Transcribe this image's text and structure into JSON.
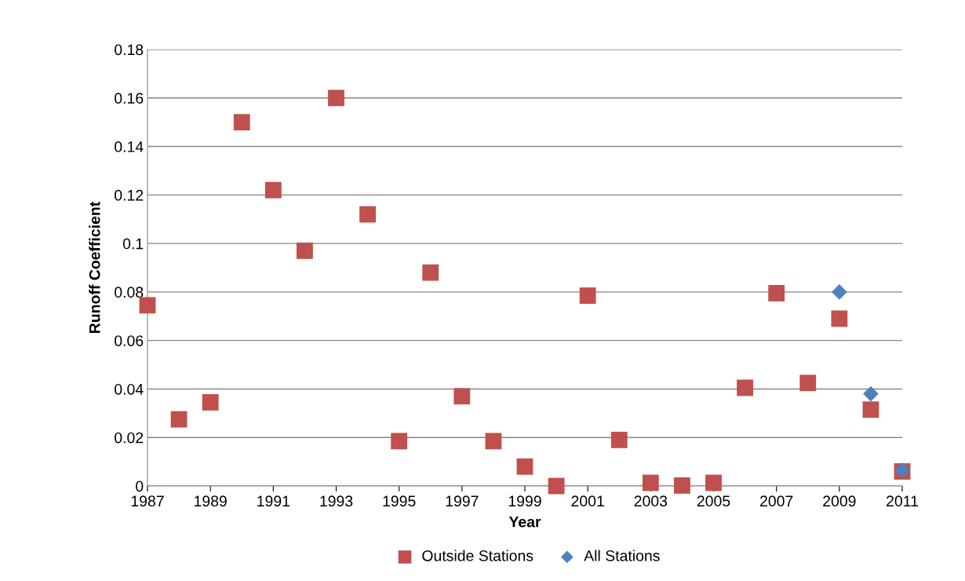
{
  "chart_data": {
    "type": "scatter",
    "xlabel": "Year",
    "ylabel": "Runoff Coefficient",
    "xlim": [
      1987,
      2011
    ],
    "xticks": [
      1987,
      1989,
      1991,
      1993,
      1995,
      1997,
      1999,
      2001,
      2003,
      2005,
      2007,
      2009,
      2011
    ],
    "ylim": [
      0,
      0.18
    ],
    "yticks": [
      0,
      0.02,
      0.04,
      0.06,
      0.08,
      0.1,
      0.12,
      0.14,
      0.16,
      0.18
    ],
    "grid": "y",
    "legend": "bottom",
    "series": [
      {
        "name": "Outside Stations",
        "color": "#c0504d",
        "marker": "square",
        "x": [
          1987,
          1988,
          1989,
          1990,
          1991,
          1992,
          1993,
          1994,
          1995,
          1996,
          1997,
          1998,
          1999,
          2000,
          2001,
          2002,
          2003,
          2004,
          2005,
          2006,
          2007,
          2008,
          2009,
          2010,
          2011
        ],
        "values": [
          0.0745,
          0.0275,
          0.0345,
          0.15,
          0.122,
          0.097,
          0.16,
          0.112,
          0.0185,
          0.088,
          0.037,
          0.0185,
          0.008,
          0.0,
          0.0785,
          0.019,
          0.0013,
          0.0002,
          0.0013,
          0.0405,
          0.0795,
          0.0425,
          0.069,
          0.0315,
          0.006
        ]
      },
      {
        "name": "All Stations",
        "color": "#4f81bd",
        "marker": "diamond",
        "x": [
          2009,
          2010,
          2011
        ],
        "values": [
          0.08,
          0.038,
          0.0065
        ]
      }
    ]
  }
}
